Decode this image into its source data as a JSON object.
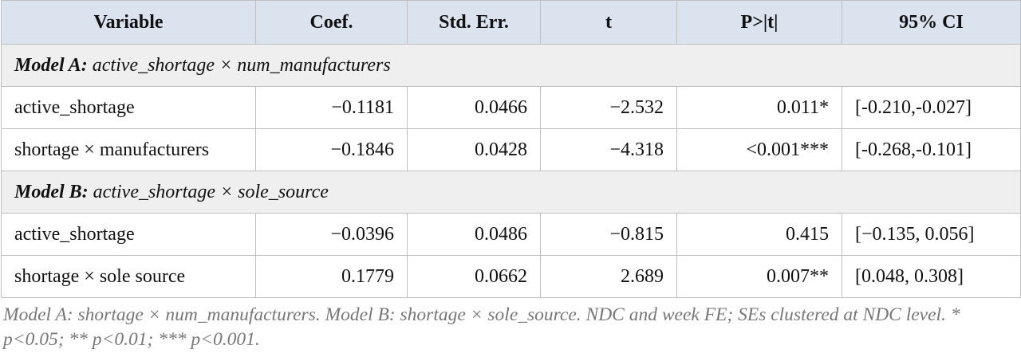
{
  "table": {
    "header": [
      "Variable",
      "Coef.",
      "Std. Err.",
      "t",
      "P>|t|",
      "95% CI"
    ],
    "sections": [
      {
        "label": "Model A:",
        "spec": "active_shortage × num_manufacturers",
        "rows": [
          [
            "active_shortage",
            "−0.1181",
            "0.0466",
            "−2.532",
            "0.011*",
            "[-0.210,-0.027]"
          ],
          [
            "shortage × manufacturers",
            "−0.1846",
            "0.0428",
            "−4.318",
            "<0.001***",
            "[-0.268,-0.101]"
          ]
        ]
      },
      {
        "label": "Model B:",
        "spec": "active_shortage × sole_source",
        "rows": [
          [
            "active_shortage",
            "−0.0396",
            "0.0486",
            "−0.815",
            "0.415",
            "[−0.135, 0.056]"
          ],
          [
            "shortage × sole source",
            "0.1779",
            "0.0662",
            "2.689",
            "0.007**",
            "[0.048, 0.308]"
          ]
        ]
      }
    ]
  },
  "caption": "Model A: shortage × num_manufacturers. Model B: shortage × sole_source. NDC and week FE; SEs clustered at NDC level. * p<0.05; ** p<0.01; *** p<0.001."
}
